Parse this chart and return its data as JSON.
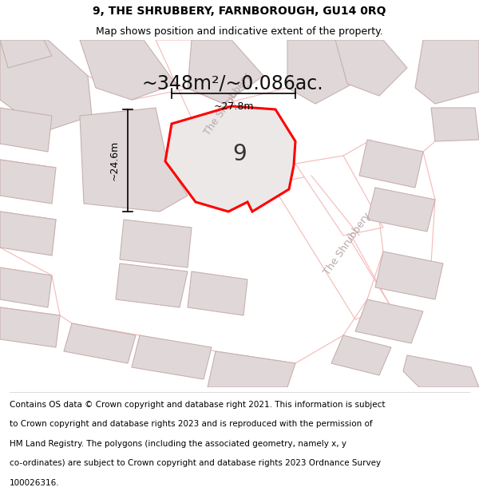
{
  "title": "9, THE SHRUBBERY, FARNBOROUGH, GU14 0RQ",
  "subtitle": "Map shows position and indicative extent of the property.",
  "area_text": "~348m²/~0.086ac.",
  "number_label": "9",
  "dim_width": "~27.8m",
  "dim_height": "~24.6m",
  "footer": "Contains OS data © Crown copyright and database right 2021. This information is subject to Crown copyright and database rights 2023 and is reproduced with the permission of HM Land Registry. The polygons (including the associated geometry, namely x, y co-ordinates) are subject to Crown copyright and database rights 2023 Ordnance Survey 100026316.",
  "bg_color": "#ffffff",
  "map_bg": "#f0eded",
  "road_bg": "#ffffff",
  "plot_outline": "#ff0000",
  "road_line_color": "#f5b8b8",
  "building_fill": "#e0d8d8",
  "building_line": "#c8b0b0",
  "road_label_color": "#b8a8a8",
  "dim_color": "#000000",
  "title_fontsize": 10,
  "subtitle_fontsize": 9,
  "area_fontsize": 17,
  "footer_fontsize": 7.5,
  "number_fontsize": 20,
  "road_label_fontsize": 9
}
